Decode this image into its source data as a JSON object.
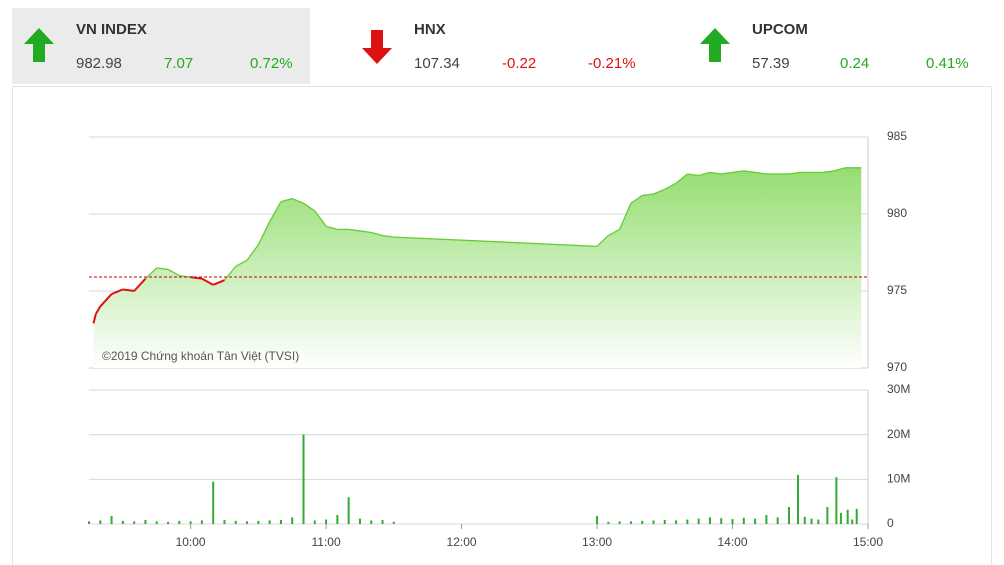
{
  "tickers": [
    {
      "name": "VN INDEX",
      "value": "982.98",
      "change": "7.07",
      "percent": "0.72%"
    },
    {
      "name": "HNX",
      "value": "107.34",
      "change": "-0.22",
      "percent": "-0.21%"
    },
    {
      "name": "UPCOM",
      "value": "57.39",
      "change": "0.24",
      "percent": "0.41%"
    }
  ],
  "chart_data": [
    {
      "type": "line",
      "annotation": "©2019 Chứng khoán Tân Việt (TVSI)",
      "reference": 975.91,
      "reference_color": "#cc0000",
      "up_color": "#66cc33",
      "down_color": "#dd1111",
      "xlim": [
        "09:15",
        "15:00"
      ],
      "ylim": [
        970,
        985
      ],
      "yticks": [
        970,
        975,
        980,
        985
      ],
      "grid": true,
      "x": [
        "09:17",
        "09:18",
        "09:20",
        "09:25",
        "09:30",
        "09:35",
        "09:40",
        "09:45",
        "09:50",
        "09:55",
        "10:00",
        "10:05",
        "10:10",
        "10:15",
        "10:20",
        "10:25",
        "10:30",
        "10:35",
        "10:40",
        "10:45",
        "10:50",
        "10:55",
        "11:00",
        "11:05",
        "11:10",
        "11:15",
        "11:20",
        "11:25",
        "11:30",
        "13:00",
        "13:05",
        "13:10",
        "13:15",
        "13:20",
        "13:25",
        "13:30",
        "13:35",
        "13:40",
        "13:45",
        "13:50",
        "13:55",
        "14:00",
        "14:05",
        "14:10",
        "14:15",
        "14:20",
        "14:25",
        "14:30",
        "14:35",
        "14:40",
        "14:45",
        "14:50",
        "14:57"
      ],
      "values": [
        972.9,
        973.5,
        974.0,
        974.8,
        975.1,
        975.0,
        975.8,
        976.5,
        976.4,
        976.0,
        975.9,
        975.8,
        975.4,
        975.7,
        976.6,
        977.0,
        978.0,
        979.5,
        980.8,
        981.0,
        980.7,
        980.2,
        979.2,
        979.0,
        979.0,
        978.9,
        978.8,
        978.6,
        978.5,
        977.9,
        978.6,
        979.0,
        980.7,
        981.2,
        981.3,
        981.6,
        982.0,
        982.6,
        982.5,
        982.7,
        982.6,
        982.7,
        982.8,
        982.7,
        982.6,
        982.6,
        982.6,
        982.7,
        982.7,
        982.7,
        982.8,
        983.0,
        983.0
      ]
    },
    {
      "type": "bar",
      "color": "#33aa33",
      "xlim": [
        "09:15",
        "15:00"
      ],
      "xticks": [
        "10:00",
        "11:00",
        "12:00",
        "13:00",
        "14:00",
        "15:00"
      ],
      "ylim": [
        0,
        30000000
      ],
      "yticks": [
        0,
        {
          "value": 10000000,
          "label": "10M"
        },
        {
          "value": 20000000,
          "label": "20M"
        },
        {
          "value": 30000000,
          "label": "30M"
        }
      ],
      "grid": true,
      "x": [
        "09:15",
        "09:20",
        "09:25",
        "09:30",
        "09:35",
        "09:40",
        "09:45",
        "09:50",
        "09:55",
        "10:00",
        "10:05",
        "10:10",
        "10:15",
        "10:20",
        "10:25",
        "10:30",
        "10:35",
        "10:40",
        "10:45",
        "10:50",
        "10:55",
        "11:00",
        "11:05",
        "11:10",
        "11:15",
        "11:20",
        "11:25",
        "11:30",
        "13:00",
        "13:05",
        "13:10",
        "13:15",
        "13:20",
        "13:25",
        "13:30",
        "13:35",
        "13:40",
        "13:45",
        "13:50",
        "13:55",
        "14:00",
        "14:05",
        "14:10",
        "14:15",
        "14:20",
        "14:25",
        "14:29",
        "14:32",
        "14:35",
        "14:38",
        "14:42",
        "14:46",
        "14:48",
        "14:51",
        "14:53",
        "14:55"
      ],
      "values": [
        600000,
        800000,
        1800000,
        700000,
        600000,
        900000,
        600000,
        500000,
        700000,
        600000,
        800000,
        9500000,
        900000,
        700000,
        600000,
        700000,
        800000,
        900000,
        1500000,
        20000000,
        800000,
        1000000,
        2000000,
        6000000,
        1200000,
        800000,
        900000,
        500000,
        1800000,
        500000,
        600000,
        600000,
        700000,
        800000,
        900000,
        800000,
        1000000,
        1200000,
        1500000,
        1300000,
        1100000,
        1400000,
        1200000,
        2000000,
        1500000,
        3800000,
        11000000,
        1600000,
        1200000,
        1000000,
        3800000,
        10500000,
        2500000,
        3200000,
        1000000,
        3400000
      ]
    }
  ]
}
